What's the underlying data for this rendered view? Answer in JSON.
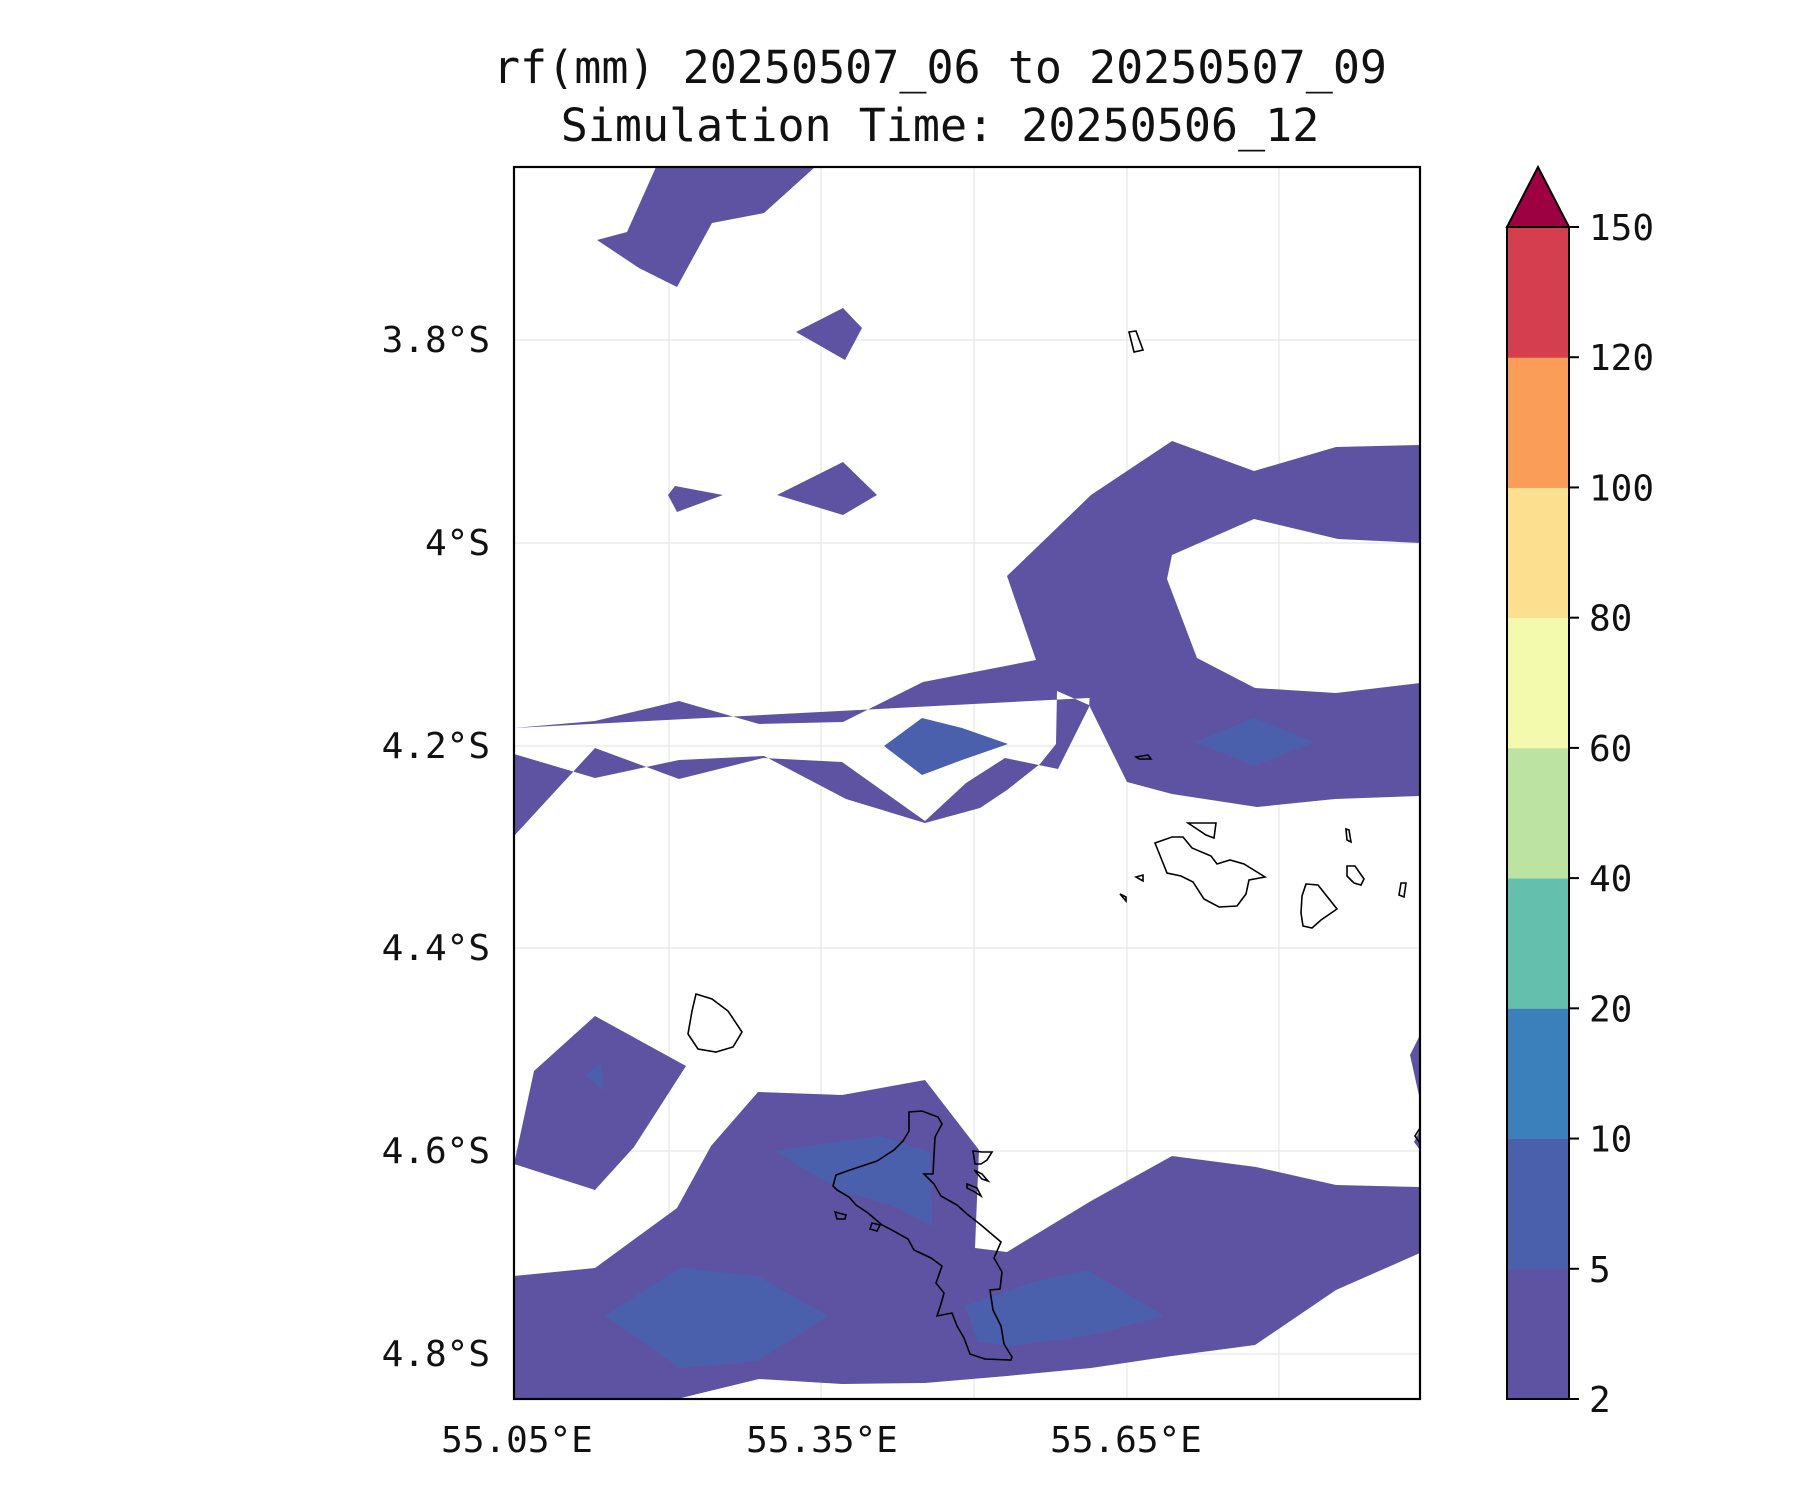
{
  "title": {
    "line1": "rf(mm) 20250507_06 to 20250507_09",
    "line2": "Simulation Time: 20250506_12"
  },
  "chart_data": {
    "type": "contour-map",
    "variable": "rf(mm)",
    "lat_ticks": [
      "3.8°S",
      "4°S",
      "4.2°S",
      "4.4°S",
      "4.6°S",
      "4.8°S"
    ],
    "lon_ticks": [
      "55.05°E",
      "55.35°E",
      "55.65°E"
    ],
    "colorbar": {
      "levels": [
        2,
        5,
        10,
        20,
        40,
        60,
        80,
        100,
        120,
        150
      ],
      "labels": [
        "2",
        "5",
        "10",
        "20",
        "40",
        "60",
        "80",
        "100",
        "120",
        "150"
      ],
      "colors": [
        "#5e53a3",
        "#4b60ad",
        "#3b80bb",
        "#64bfad",
        "#bde3a3",
        "#f3faae",
        "#fde08f",
        "#f99d59",
        "#d53e4f",
        "#9e0142"
      ],
      "extend": "max"
    },
    "fill_color_2_5": "#5e53a3",
    "fill_color_5_10": "#4b60ad",
    "grid": true
  }
}
